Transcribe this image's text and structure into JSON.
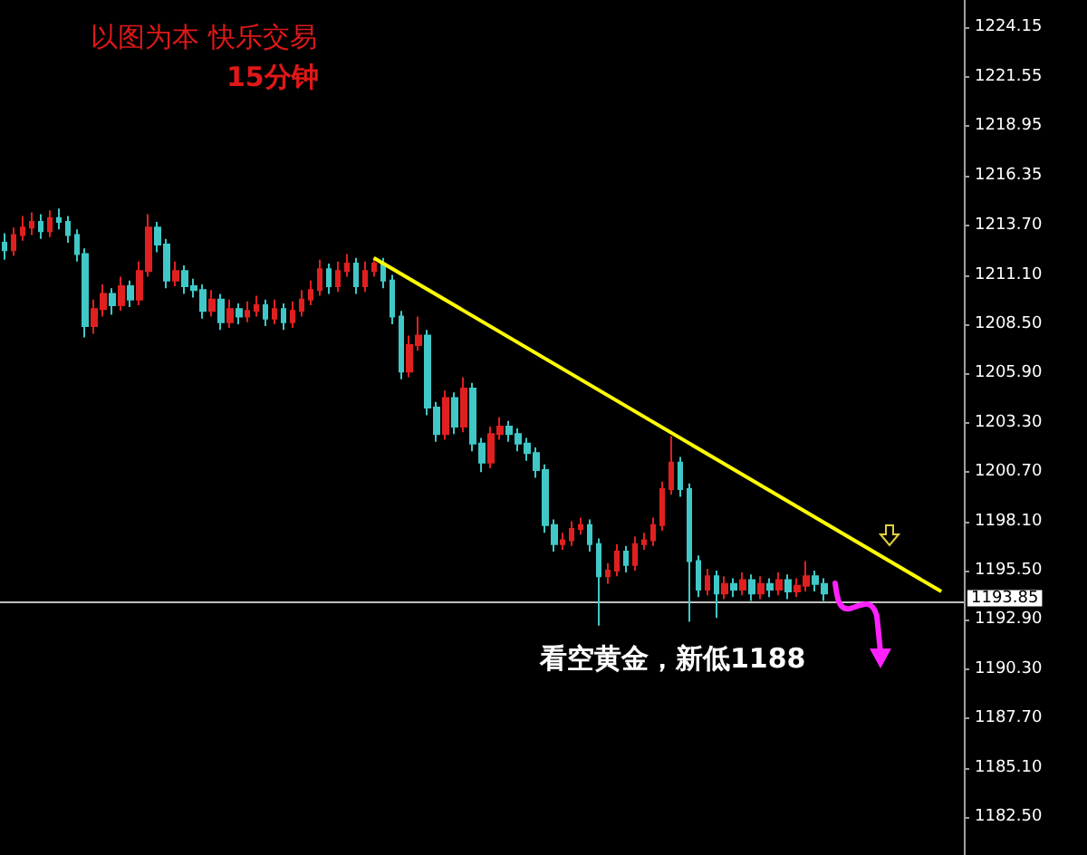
{
  "chart_data": {
    "type": "candlestick",
    "title": "以图为本 快乐交易",
    "subtitle": "15分钟",
    "annotations": [
      "看空黄金，新低1188"
    ],
    "categories": [
      null,
      null,
      null,
      null,
      null,
      null,
      null,
      null,
      null,
      null,
      null,
      null,
      null,
      null,
      null,
      null,
      null,
      null,
      null,
      null,
      null,
      null,
      null,
      null,
      null,
      null,
      null,
      null,
      null,
      null,
      null,
      null,
      null,
      null,
      null,
      null,
      null,
      null,
      null,
      null,
      null,
      null,
      null,
      null,
      null,
      null,
      null,
      null,
      null,
      null,
      null,
      null,
      null,
      null,
      null,
      null,
      null,
      null,
      null,
      null,
      null,
      null,
      null,
      null,
      null,
      null,
      null,
      null,
      null,
      null,
      null,
      null,
      null,
      null,
      null,
      null,
      null,
      null,
      null,
      null,
      null,
      null,
      null,
      null,
      null,
      null,
      null,
      null,
      null,
      null,
      null,
      null,
      null,
      null,
      null,
      null,
      null,
      null,
      null,
      null,
      null,
      null,
      null,
      null,
      null,
      null,
      null
    ],
    "series": [
      {
        "ohlc": [
          [
            1212.8,
            1213.3,
            1211.9,
            1212.4
          ],
          [
            1212.4,
            1213.6,
            1212.1,
            1213.2
          ],
          [
            1213.2,
            1214.2,
            1212.9,
            1213.6
          ],
          [
            1213.6,
            1214.4,
            1213.2,
            1213.9
          ],
          [
            1213.9,
            1214.3,
            1213.0,
            1213.4
          ],
          [
            1213.4,
            1214.5,
            1213.1,
            1214.1
          ],
          [
            1214.1,
            1214.6,
            1213.5,
            1213.9
          ],
          [
            1213.9,
            1214.2,
            1212.8,
            1213.2
          ],
          [
            1213.2,
            1213.5,
            1211.8,
            1212.2
          ],
          [
            1212.2,
            1212.5,
            1207.8,
            1208.4
          ],
          [
            1208.4,
            1209.8,
            1208.0,
            1209.3
          ],
          [
            1209.3,
            1210.6,
            1208.9,
            1210.1
          ],
          [
            1210.1,
            1210.4,
            1209.0,
            1209.5
          ],
          [
            1209.5,
            1211.0,
            1209.2,
            1210.5
          ],
          [
            1210.5,
            1210.8,
            1209.4,
            1209.8
          ],
          [
            1209.8,
            1211.8,
            1209.5,
            1211.3
          ],
          [
            1211.3,
            1214.3,
            1211.0,
            1213.6
          ],
          [
            1213.6,
            1213.9,
            1212.3,
            1212.7
          ],
          [
            1212.7,
            1213.0,
            1210.4,
            1210.8
          ],
          [
            1210.8,
            1211.8,
            1210.5,
            1211.3
          ],
          [
            1211.3,
            1211.6,
            1210.1,
            1210.5
          ],
          [
            1210.5,
            1210.9,
            1209.9,
            1210.3
          ],
          [
            1210.3,
            1210.6,
            1208.8,
            1209.2
          ],
          [
            1209.2,
            1210.3,
            1208.9,
            1209.8
          ],
          [
            1209.8,
            1210.1,
            1208.2,
            1208.6
          ],
          [
            1208.6,
            1209.8,
            1208.3,
            1209.3
          ],
          [
            1209.3,
            1209.6,
            1208.5,
            1208.9
          ],
          [
            1208.9,
            1209.7,
            1208.6,
            1209.2
          ],
          [
            1209.2,
            1210.0,
            1208.9,
            1209.5
          ],
          [
            1209.5,
            1209.8,
            1208.4,
            1208.8
          ],
          [
            1208.8,
            1209.8,
            1208.5,
            1209.3
          ],
          [
            1209.3,
            1209.6,
            1208.2,
            1208.6
          ],
          [
            1208.6,
            1209.7,
            1208.3,
            1209.2
          ],
          [
            1209.2,
            1210.3,
            1208.9,
            1209.8
          ],
          [
            1209.8,
            1210.8,
            1209.5,
            1210.3
          ],
          [
            1210.3,
            1211.9,
            1210.0,
            1211.4
          ],
          [
            1211.4,
            1211.7,
            1210.1,
            1210.5
          ],
          [
            1210.5,
            1211.8,
            1210.2,
            1211.3
          ],
          [
            1211.3,
            1212.2,
            1211.0,
            1211.7
          ],
          [
            1211.7,
            1212.0,
            1210.1,
            1210.5
          ],
          [
            1210.5,
            1211.8,
            1210.2,
            1211.3
          ],
          [
            1211.3,
            1212.0,
            1211.0,
            1211.7
          ],
          [
            1211.7,
            1212.0,
            1210.4,
            1210.8
          ],
          [
            1210.8,
            1211.1,
            1208.5,
            1208.9
          ],
          [
            1208.9,
            1209.2,
            1205.6,
            1206.0
          ],
          [
            1206.0,
            1207.9,
            1205.7,
            1207.4
          ],
          [
            1207.4,
            1208.9,
            1207.1,
            1207.9
          ],
          [
            1207.9,
            1208.2,
            1203.7,
            1204.1
          ],
          [
            1204.1,
            1204.4,
            1202.3,
            1202.7
          ],
          [
            1202.7,
            1205.0,
            1202.4,
            1204.6
          ],
          [
            1204.6,
            1204.9,
            1202.7,
            1203.1
          ],
          [
            1203.1,
            1205.7,
            1202.8,
            1205.1
          ],
          [
            1205.1,
            1205.4,
            1201.8,
            1202.2
          ],
          [
            1202.2,
            1202.5,
            1200.7,
            1201.2
          ],
          [
            1201.2,
            1203.1,
            1200.9,
            1202.7
          ],
          [
            1202.7,
            1203.6,
            1202.4,
            1203.1
          ],
          [
            1203.1,
            1203.4,
            1202.3,
            1202.7
          ],
          [
            1202.7,
            1203.0,
            1201.8,
            1202.2
          ],
          [
            1202.2,
            1202.5,
            1201.3,
            1201.7
          ],
          [
            1201.7,
            1202.0,
            1200.4,
            1200.8
          ],
          [
            1200.8,
            1201.1,
            1197.5,
            1197.9
          ],
          [
            1197.9,
            1198.2,
            1196.5,
            1196.9
          ],
          [
            1196.9,
            1197.5,
            1196.6,
            1197.1
          ],
          [
            1197.1,
            1198.1,
            1196.8,
            1197.7
          ],
          [
            1197.7,
            1198.3,
            1197.4,
            1197.9
          ],
          [
            1197.9,
            1198.2,
            1196.5,
            1196.9
          ],
          [
            1196.9,
            1197.2,
            1192.6,
            1195.2
          ],
          [
            1195.2,
            1195.9,
            1194.8,
            1195.5
          ],
          [
            1195.5,
            1196.9,
            1195.2,
            1196.5
          ],
          [
            1196.5,
            1196.8,
            1195.4,
            1195.8
          ],
          [
            1195.8,
            1197.3,
            1195.5,
            1196.9
          ],
          [
            1196.9,
            1197.5,
            1196.6,
            1197.1
          ],
          [
            1197.1,
            1198.3,
            1196.8,
            1197.9
          ],
          [
            1197.9,
            1200.2,
            1197.6,
            1199.8
          ],
          [
            1199.8,
            1202.6,
            1199.5,
            1201.2
          ],
          [
            1201.2,
            1201.5,
            1199.4,
            1199.8
          ],
          [
            1199.8,
            1200.1,
            1192.8,
            1196.0
          ],
          [
            1196.0,
            1196.3,
            1194.1,
            1194.5
          ],
          [
            1194.5,
            1195.6,
            1194.2,
            1195.2
          ],
          [
            1195.2,
            1195.5,
            1193.0,
            1194.3
          ],
          [
            1194.3,
            1195.2,
            1194.0,
            1194.8
          ],
          [
            1194.8,
            1195.1,
            1194.1,
            1194.5
          ],
          [
            1194.5,
            1195.4,
            1194.2,
            1195.0
          ],
          [
            1195.0,
            1195.3,
            1193.9,
            1194.3
          ],
          [
            1194.3,
            1195.2,
            1194.0,
            1194.8
          ],
          [
            1194.8,
            1195.1,
            1194.1,
            1194.5
          ],
          [
            1194.5,
            1195.4,
            1194.2,
            1195.0
          ],
          [
            1195.0,
            1195.3,
            1194.0,
            1194.4
          ],
          [
            1194.4,
            1195.1,
            1194.1,
            1194.7
          ],
          [
            1194.7,
            1196.0,
            1194.4,
            1195.2
          ],
          [
            1195.2,
            1195.5,
            1194.4,
            1194.8
          ],
          [
            1194.8,
            1195.1,
            1193.9,
            1194.3
          ],
          null,
          null,
          null,
          null,
          null,
          null,
          null,
          null,
          null,
          null,
          null,
          null,
          null,
          null,
          null
        ]
      },
      {
        "type": "line",
        "color": "#ffff00",
        "values": [
          null,
          null,
          null,
          null,
          null,
          null,
          null,
          null,
          null,
          null,
          null,
          null,
          null,
          null,
          null,
          null,
          null,
          null,
          null,
          null,
          null,
          null,
          null,
          null,
          null,
          null,
          null,
          null,
          null,
          null,
          null,
          null,
          null,
          null,
          null,
          null,
          null,
          null,
          null,
          null,
          null,
          1212.0,
          null,
          null,
          null,
          null,
          null,
          null,
          null,
          null,
          null,
          null,
          null,
          null,
          null,
          null,
          null,
          null,
          null,
          null,
          null,
          null,
          null,
          null,
          null,
          null,
          null,
          null,
          null,
          null,
          null,
          null,
          null,
          null,
          null,
          null,
          null,
          null,
          null,
          null,
          null,
          null,
          null,
          null,
          null,
          null,
          null,
          null,
          null,
          null,
          null,
          null,
          null,
          null,
          null,
          null,
          null,
          null,
          null,
          null,
          null,
          null,
          null,
          null,
          1194.4,
          null,
          null
        ]
      }
    ],
    "ref_lines": [
      {
        "axis": "y",
        "value": 1193.85,
        "label": "1193.85",
        "color": "#c0c0c0"
      }
    ],
    "ylim": [
      1180.5,
      1225.6
    ],
    "yticks": [
      1224.15,
      1221.55,
      1218.95,
      1216.35,
      {
        "value": 1213.7,
        "label": "1213.70"
      },
      {
        "value": 1211.1,
        "label": "1211.10"
      },
      {
        "value": 1208.5,
        "label": "1208.50"
      },
      {
        "value": 1205.9,
        "label": "1205.90"
      },
      {
        "value": 1203.3,
        "label": "1203.30"
      },
      {
        "value": 1200.7,
        "label": "1200.70"
      },
      {
        "value": 1198.1,
        "label": "1198.10"
      },
      {
        "value": 1195.5,
        "label": "1195.50"
      },
      {
        "value": 1192.9,
        "label": "1192.90"
      },
      {
        "value": 1190.3,
        "label": "1190.30"
      },
      {
        "value": 1187.7,
        "label": "1187.70"
      },
      {
        "value": 1185.1,
        "label": "1185.10"
      },
      {
        "value": 1182.5,
        "label": "1182.50"
      }
    ],
    "tick_labels": "y",
    "grid": false
  }
}
